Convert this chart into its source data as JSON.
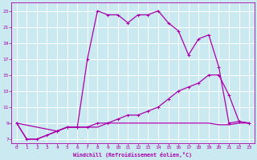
{
  "xlabel": "Windchill (Refroidissement éolien,°C)",
  "xlim": [
    -0.5,
    23.5
  ],
  "ylim": [
    6.5,
    24
  ],
  "yticks": [
    7,
    9,
    11,
    13,
    15,
    17,
    19,
    21,
    23
  ],
  "xticks": [
    0,
    1,
    2,
    3,
    4,
    5,
    6,
    7,
    8,
    9,
    10,
    11,
    12,
    13,
    14,
    15,
    16,
    17,
    18,
    19,
    20,
    21,
    22,
    23
  ],
  "bg_color": "#cbe9f0",
  "line_color": "#aa00aa",
  "grid_color": "#ffffff",
  "line1_x": [
    0,
    1,
    2,
    3,
    4,
    5,
    6,
    7,
    8,
    9,
    10,
    11,
    12,
    13,
    14,
    15,
    16,
    17,
    18,
    19,
    20,
    21,
    22,
    23
  ],
  "line1_y": [
    9,
    7,
    7,
    7.5,
    8,
    8.5,
    8.5,
    17,
    23,
    22.5,
    22.5,
    21.5,
    22.5,
    22.5,
    23,
    21.5,
    20.5,
    17.5,
    19.5,
    20,
    16,
    9,
    9.2,
    9
  ],
  "line2_x": [
    0,
    1,
    2,
    3,
    4,
    5,
    6,
    7,
    8,
    9,
    10,
    11,
    12,
    13,
    14,
    15,
    16,
    17,
    18,
    19,
    20,
    21,
    22,
    23
  ],
  "line2_y": [
    9,
    7,
    7,
    7.5,
    8,
    8.5,
    8.5,
    8.5,
    8.5,
    9,
    9,
    9,
    9,
    9,
    9,
    9,
    9,
    9,
    9,
    9,
    8.8,
    8.8,
    9,
    9
  ],
  "line3_x": [
    0,
    4,
    5,
    6,
    7,
    8,
    9,
    10,
    11,
    12,
    13,
    14,
    15,
    16,
    17,
    18,
    19,
    20,
    21,
    22,
    23
  ],
  "line3_y": [
    9,
    8,
    8.5,
    8.5,
    8.5,
    9,
    9,
    9.5,
    10,
    10,
    10.5,
    11,
    12,
    13,
    13.5,
    14,
    15,
    15,
    12.5,
    9.2,
    9
  ]
}
